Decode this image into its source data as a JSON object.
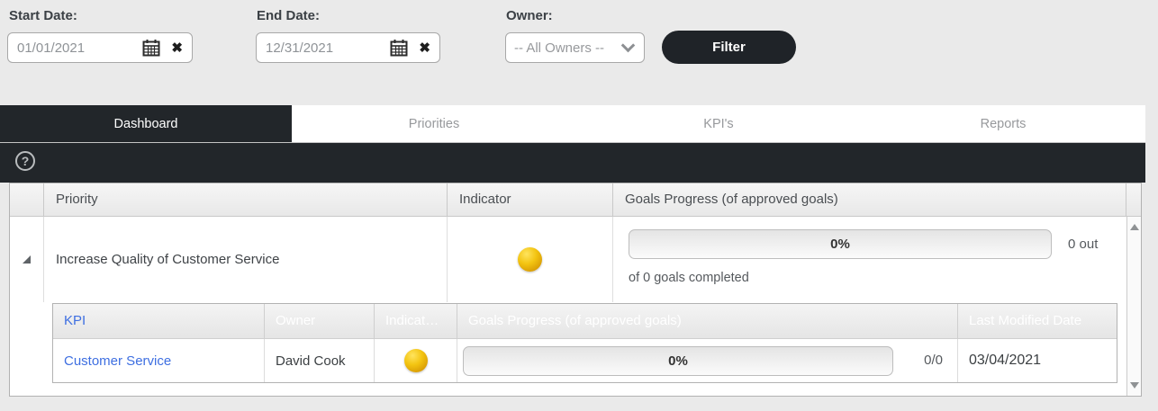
{
  "filters": {
    "start_date": {
      "label": "Start Date:",
      "value": "01/01/2021"
    },
    "end_date": {
      "label": "End Date:",
      "value": "12/31/2021"
    },
    "owner": {
      "label": "Owner:",
      "value": "-- All Owners --"
    },
    "filter_button": "Filter"
  },
  "tabs": [
    {
      "label": "Dashboard",
      "active": true
    },
    {
      "label": "Priorities",
      "active": false
    },
    {
      "label": "KPI's",
      "active": false
    },
    {
      "label": "Reports",
      "active": false
    }
  ],
  "help_icon": "?",
  "grid": {
    "headers": [
      "Priority",
      "Indicator",
      "Goals Progress (of approved goals)"
    ],
    "row": {
      "priority": "Increase Quality of Customer Service",
      "indicator_color": "gold",
      "progress_label": "0%",
      "progress_value": 0,
      "side_text": "0 out",
      "below_text": "of 0 goals completed"
    }
  },
  "nested": {
    "headers": [
      "KPI",
      "Owner",
      "Indicat…",
      "Goals Progress (of approved goals)",
      "Last Modified Date"
    ],
    "row": {
      "kpi": "Customer Service",
      "owner": "David Cook",
      "indicator_color": "gold",
      "progress_label": "0%",
      "progress_value": 0,
      "ratio": "0/0",
      "last_modified": "03/04/2021"
    }
  },
  "colors": {
    "accent_dark": "#22262a",
    "indicator_gold": "#e9b80c",
    "link_blue": "#3e6fe1",
    "page_background": "#eaeaea"
  }
}
